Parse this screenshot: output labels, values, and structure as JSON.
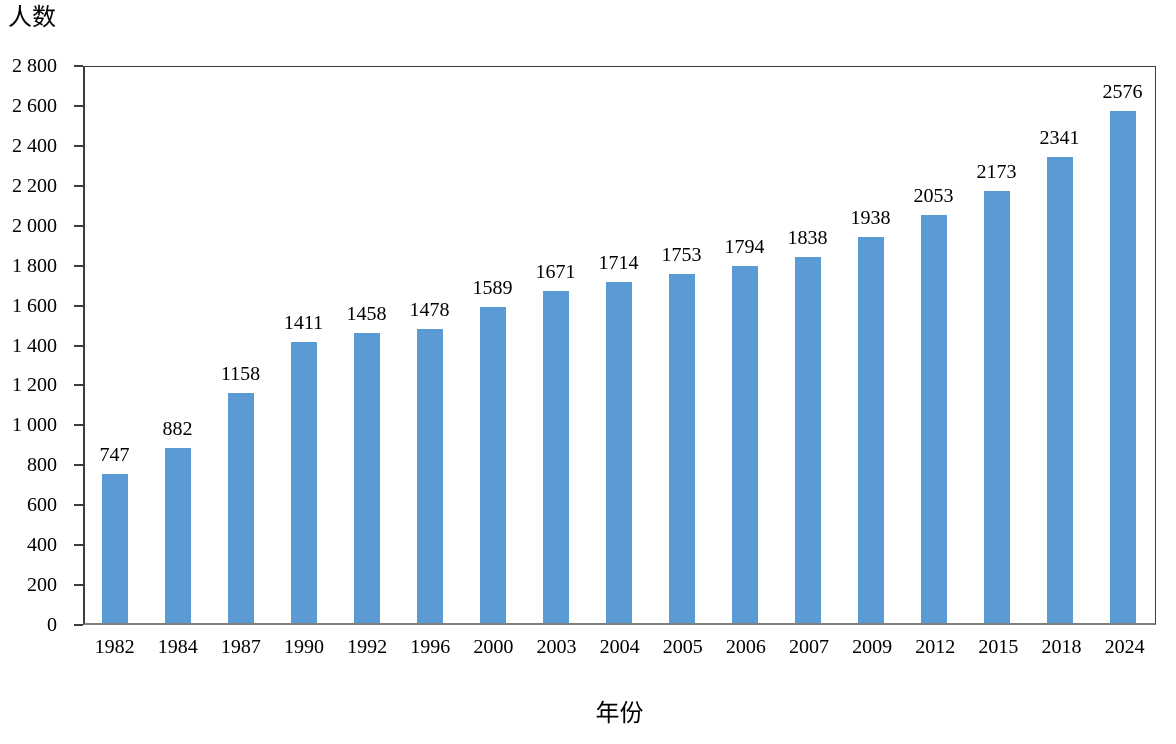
{
  "chart_data": {
    "type": "bar",
    "ylabel": "人数",
    "xlabel": "年份",
    "categories": [
      "1982",
      "1984",
      "1987",
      "1990",
      "1992",
      "1996",
      "2000",
      "2003",
      "2004",
      "2005",
      "2006",
      "2007",
      "2009",
      "2012",
      "2015",
      "2018",
      "2024"
    ],
    "values": [
      747,
      882,
      1158,
      1411,
      1458,
      1478,
      1589,
      1671,
      1714,
      1753,
      1794,
      1838,
      1938,
      2053,
      2173,
      2341,
      2576
    ],
    "data_labels": [
      "747",
      "882",
      "1158",
      "1411",
      "1458",
      "1478",
      "1589",
      "1671",
      "1714",
      "1753",
      "1794",
      "1838",
      "1938",
      "2053",
      "2173",
      "2341",
      "2576"
    ],
    "ylim": [
      0,
      2800
    ],
    "ytick_step": 200,
    "ytick_labels": [
      "0",
      "200",
      "400",
      "600",
      "800",
      "1 000",
      "1 200",
      "1 400",
      "1 600",
      "1 800",
      "2 000",
      "2 200",
      "2 400",
      "2 600",
      "2 800"
    ],
    "grid": false,
    "legend": false,
    "data_labels_shown": true,
    "bar_color": "#5B9BD5",
    "axis_color": "#3D3D3D",
    "text_color": "#000000"
  }
}
